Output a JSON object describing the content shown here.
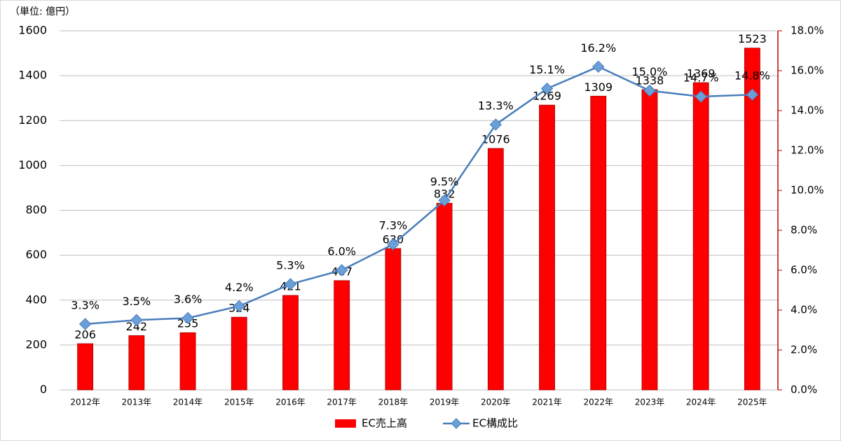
{
  "chart_data": {
    "type": "bar",
    "unit_label": "（単位: 億円）",
    "categories": [
      "2012年",
      "2013年",
      "2014年",
      "2015年",
      "2016年",
      "2017年",
      "2018年",
      "2019年",
      "2020年",
      "2021年",
      "2022年",
      "2023年",
      "2024年",
      "2025年"
    ],
    "series": [
      {
        "name": "EC売上高",
        "type": "bar",
        "color": "#ff0000",
        "values": [
          206,
          242,
          255,
          324,
          421,
          487,
          630,
          832,
          1076,
          1269,
          1309,
          1338,
          1369,
          1523
        ]
      },
      {
        "name": "EC構成比",
        "type": "line",
        "axis": "y2",
        "color": "#4a7ebb",
        "values": [
          3.3,
          3.5,
          3.6,
          4.2,
          5.3,
          6.0,
          7.3,
          9.5,
          13.3,
          15.1,
          16.2,
          15.0,
          14.7,
          14.8
        ],
        "value_labels": [
          "3.3%",
          "3.5%",
          "3.6%",
          "4.2%",
          "5.3%",
          "6.0%",
          "7.3%",
          "9.5%",
          "13.3%",
          "15.1%",
          "16.2%",
          "15.0%",
          "14.7%",
          "14.8%"
        ]
      }
    ],
    "ylim": [
      0,
      1600
    ],
    "yticks": [
      0,
      200,
      400,
      600,
      800,
      1000,
      1200,
      1400,
      1600
    ],
    "y2lim": [
      0,
      18
    ],
    "y2ticks": [
      {
        "value": 0,
        "label": "0.0%"
      },
      {
        "value": 2,
        "label": "2.0%"
      },
      {
        "value": 4,
        "label": "4.0%"
      },
      {
        "value": 6,
        "label": "6.0%"
      },
      {
        "value": 8,
        "label": "8.0%"
      },
      {
        "value": 10,
        "label": "10.0%"
      },
      {
        "value": 12,
        "label": "12.0%"
      },
      {
        "value": 14,
        "label": "14.0%"
      },
      {
        "value": 16,
        "label": "16.0%"
      },
      {
        "value": 18,
        "label": "18.0%"
      }
    ],
    "grid": true,
    "legend": "bottom"
  }
}
